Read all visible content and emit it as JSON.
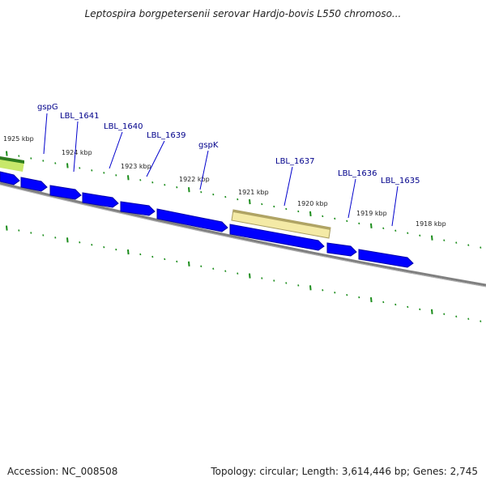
{
  "title": "Leptospira borgpetersenii serovar Hardjo-bovis L550 chromoso...",
  "accession": "Accession: NC_008508",
  "summary": "Topology: circular; Length: 3,614,446 bp; Genes: 2,745",
  "colors": {
    "gene": "#0000ff",
    "gene_edge": "#0000aa",
    "highlight": "#f2e6a0",
    "highlight_edge": "#a89c60",
    "backbone": "#808080",
    "tick": "#1a8c1a",
    "label_line": "#0000cc"
  },
  "ticks": [
    {
      "label": "1925 kbp"
    },
    {
      "label": "1924 kbp"
    },
    {
      "label": "1923 kbp"
    },
    {
      "label": "1922 kbp"
    },
    {
      "label": "1921 kbp"
    },
    {
      "label": "1920 kbp"
    },
    {
      "label": "1919 kbp"
    },
    {
      "label": "1918 kbp"
    }
  ],
  "genes": [
    {
      "name": "gspG"
    },
    {
      "name": "LBL_1641"
    },
    {
      "name": "LBL_1640"
    },
    {
      "name": "LBL_1639"
    },
    {
      "name": "gspK"
    },
    {
      "name": "LBL_1637"
    },
    {
      "name": "LBL_1636"
    },
    {
      "name": "LBL_1635"
    }
  ],
  "highlighted_gene": "LBL_1637"
}
